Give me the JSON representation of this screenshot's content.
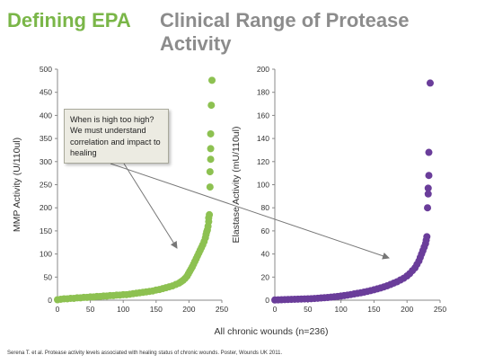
{
  "slide": {
    "title_left": "Defining EPA",
    "title_right": "Clinical Range of Protease Activity",
    "callout": "When is high too high? We must understand correlation and impact to healing",
    "shared_xlabel": "All chronic wounds (n=236)",
    "citation": "Serena T. et al. Protease activity levels associated with healing status of chronic wounds. Poster, Wounds UK 2011."
  },
  "colors": {
    "mmp": "#8dc151",
    "elastase": "#6a3d9a",
    "axis": "#888888",
    "callout_bg": "#ecebe2",
    "title_green": "#7ab648",
    "title_gray": "#8c8c8c"
  },
  "chart_data": [
    {
      "type": "scatter",
      "title": "",
      "xlabel": "",
      "ylabel": "MMP Activity (U/110ul)",
      "xlim": [
        0,
        250
      ],
      "ylim": [
        0,
        500
      ],
      "xticks": [
        0,
        50,
        100,
        150,
        200,
        250
      ],
      "yticks": [
        0,
        50,
        100,
        150,
        200,
        250,
        300,
        350,
        400,
        450,
        500
      ],
      "grid": false,
      "color": "mmp",
      "points": [
        [
          0,
          1
        ],
        [
          5,
          2
        ],
        [
          10,
          3
        ],
        [
          15,
          3
        ],
        [
          20,
          4
        ],
        [
          25,
          4
        ],
        [
          30,
          5
        ],
        [
          35,
          5
        ],
        [
          40,
          6
        ],
        [
          45,
          6
        ],
        [
          50,
          7
        ],
        [
          55,
          7
        ],
        [
          60,
          8
        ],
        [
          65,
          8
        ],
        [
          70,
          9
        ],
        [
          75,
          9
        ],
        [
          80,
          10
        ],
        [
          85,
          10
        ],
        [
          90,
          11
        ],
        [
          95,
          11
        ],
        [
          100,
          12
        ],
        [
          105,
          12
        ],
        [
          110,
          13
        ],
        [
          115,
          14
        ],
        [
          120,
          15
        ],
        [
          125,
          16
        ],
        [
          130,
          17
        ],
        [
          135,
          18
        ],
        [
          140,
          19
        ],
        [
          145,
          20
        ],
        [
          150,
          22
        ],
        [
          155,
          23
        ],
        [
          160,
          25
        ],
        [
          165,
          27
        ],
        [
          170,
          29
        ],
        [
          175,
          31
        ],
        [
          180,
          34
        ],
        [
          185,
          37
        ],
        [
          188,
          40
        ],
        [
          191,
          43
        ],
        [
          194,
          47
        ],
        [
          197,
          52
        ],
        [
          199,
          57
        ],
        [
          201,
          62
        ],
        [
          203,
          67
        ],
        [
          205,
          72
        ],
        [
          207,
          78
        ],
        [
          209,
          84
        ],
        [
          211,
          90
        ],
        [
          213,
          96
        ],
        [
          215,
          102
        ],
        [
          217,
          108
        ],
        [
          219,
          114
        ],
        [
          221,
          120
        ],
        [
          223,
          127
        ],
        [
          225,
          135
        ],
        [
          226,
          142
        ],
        [
          227,
          148
        ],
        [
          228,
          152
        ],
        [
          229,
          160
        ],
        [
          230,
          170
        ],
        [
          230,
          178
        ],
        [
          231,
          185
        ],
        [
          232,
          245
        ],
        [
          232,
          278
        ],
        [
          233,
          305
        ],
        [
          233,
          328
        ],
        [
          233,
          360
        ],
        [
          234,
          422
        ],
        [
          235,
          476
        ]
      ]
    },
    {
      "type": "scatter",
      "title": "",
      "xlabel": "",
      "ylabel": "Elastase Activity (mU/110ul)",
      "xlim": [
        0,
        250
      ],
      "ylim": [
        0,
        200
      ],
      "xticks": [
        0,
        50,
        100,
        150,
        200,
        250
      ],
      "yticks": [
        0,
        20,
        40,
        60,
        80,
        100,
        120,
        140,
        160,
        180,
        200
      ],
      "grid": false,
      "color": "elastase",
      "points": [
        [
          0,
          0.2
        ],
        [
          5,
          0.3
        ],
        [
          10,
          0.4
        ],
        [
          15,
          0.5
        ],
        [
          20,
          0.6
        ],
        [
          25,
          0.7
        ],
        [
          30,
          0.8
        ],
        [
          35,
          0.9
        ],
        [
          40,
          1.0
        ],
        [
          45,
          1.1
        ],
        [
          50,
          1.2
        ],
        [
          55,
          1.3
        ],
        [
          60,
          1.5
        ],
        [
          65,
          1.7
        ],
        [
          70,
          1.9
        ],
        [
          75,
          2.1
        ],
        [
          80,
          2.3
        ],
        [
          85,
          2.6
        ],
        [
          90,
          2.9
        ],
        [
          95,
          3.2
        ],
        [
          100,
          3.6
        ],
        [
          105,
          4.0
        ],
        [
          110,
          4.4
        ],
        [
          115,
          4.9
        ],
        [
          120,
          5.4
        ],
        [
          125,
          5.9
        ],
        [
          130,
          6.4
        ],
        [
          135,
          7.0
        ],
        [
          140,
          7.6
        ],
        [
          145,
          8.3
        ],
        [
          150,
          9.0
        ],
        [
          155,
          9.8
        ],
        [
          160,
          10.6
        ],
        [
          165,
          11.5
        ],
        [
          170,
          12.5
        ],
        [
          175,
          13.6
        ],
        [
          180,
          14.8
        ],
        [
          185,
          16.0
        ],
        [
          190,
          17.5
        ],
        [
          195,
          19.0
        ],
        [
          200,
          21.0
        ],
        [
          204,
          23.0
        ],
        [
          208,
          25.5
        ],
        [
          212,
          28.0
        ],
        [
          215,
          31.0
        ],
        [
          218,
          34.0
        ],
        [
          220,
          37.0
        ],
        [
          222,
          40.0
        ],
        [
          224,
          43.0
        ],
        [
          226,
          46.0
        ],
        [
          228,
          49.0
        ],
        [
          229,
          52.0
        ],
        [
          230,
          55.0
        ],
        [
          231,
          80.0
        ],
        [
          232,
          92.0
        ],
        [
          232,
          97.0
        ],
        [
          233,
          108.0
        ],
        [
          233,
          128.0
        ],
        [
          235,
          188.0
        ]
      ]
    }
  ]
}
